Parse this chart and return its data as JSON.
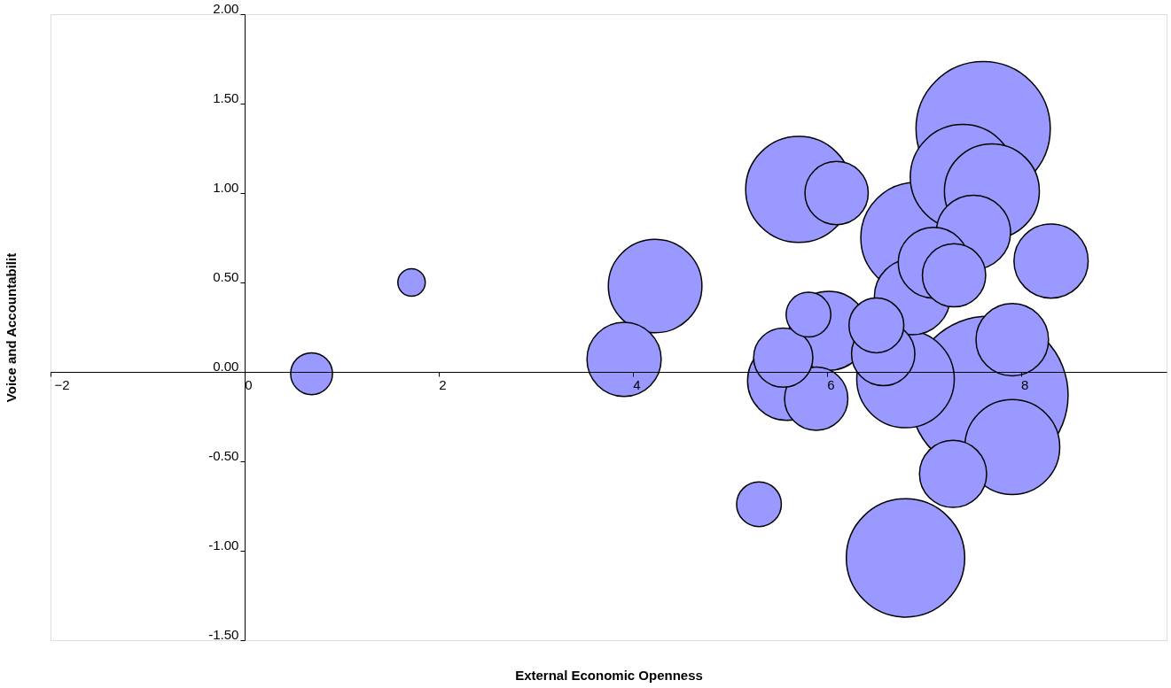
{
  "chart_data": {
    "type": "bubble",
    "xlabel": "External Economic Openness",
    "ylabel": "Voice and Accountabilit",
    "xlim": [
      -2,
      9.5
    ],
    "xticks": [
      -2,
      0,
      2,
      4,
      6,
      8
    ],
    "ylim": [
      -1.5,
      2.0
    ],
    "yticks": [
      {
        "value": -1.5,
        "label": "-1.50"
      },
      {
        "value": -1,
        "label": "-1.00"
      },
      {
        "value": -0.5,
        "label": "-0.50"
      },
      {
        "value": 0,
        "label": "0.00"
      },
      {
        "value": 0.5,
        "label": "0.50"
      },
      {
        "value": 1,
        "label": "1.00"
      },
      {
        "value": 1.5,
        "label": "1.50"
      },
      {
        "value": 2,
        "label": "2.00"
      }
    ],
    "grid": false,
    "series": [
      {
        "color": "#9999ff",
        "x": [
          7.67,
          7.61,
          6.81,
          6.92,
          5.71,
          7.4,
          6.81,
          7.7,
          7.91,
          4.23,
          5.59,
          6.02,
          3.91,
          8.31,
          7.51,
          6.88,
          7.91,
          7.1,
          7.3,
          6.1,
          7.31,
          5.89,
          6.58,
          5.55,
          6.51,
          5.3,
          5.81,
          0.69,
          1.72
        ],
        "values": [
          -0.13,
          1.36,
          -1.04,
          0.75,
          1.02,
          1.09,
          -0.04,
          1.01,
          -0.42,
          0.48,
          -0.05,
          0.23,
          0.07,
          0.62,
          0.78,
          0.42,
          0.18,
          0.61,
          -0.57,
          1.0,
          0.54,
          -0.15,
          0.1,
          0.08,
          0.26,
          -0.74,
          0.32,
          -0.01,
          0.5
        ],
        "sizes": [
          1.0,
          0.72,
          0.56,
          0.49,
          0.45,
          0.44,
          0.38,
          0.36,
          0.36,
          0.35,
          0.25,
          0.25,
          0.22,
          0.22,
          0.22,
          0.23,
          0.21,
          0.2,
          0.18,
          0.16,
          0.16,
          0.16,
          0.16,
          0.14,
          0.12,
          0.08,
          0.08,
          0.07,
          0.03
        ]
      }
    ]
  }
}
